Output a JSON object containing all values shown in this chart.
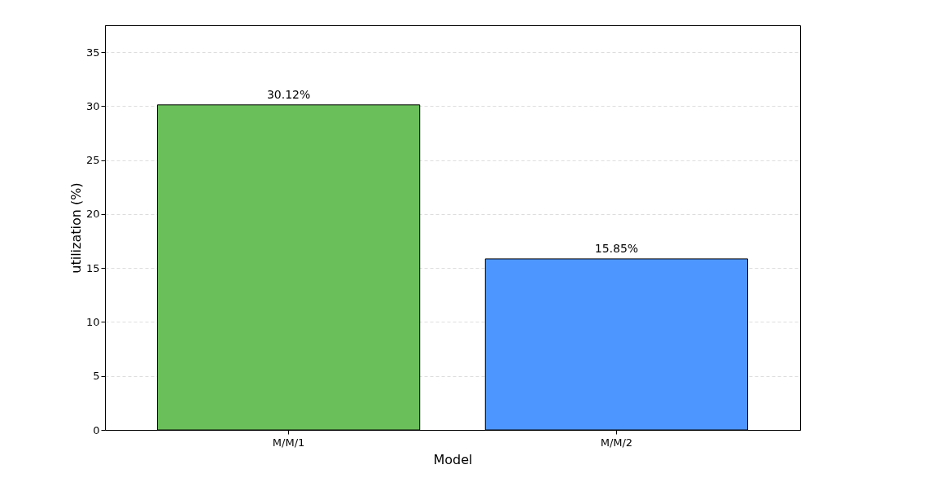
{
  "chart_data": {
    "type": "bar",
    "xlabel": "Model",
    "ylabel": "utilization (%)",
    "categories": [
      "M/M/1",
      "M/M/2"
    ],
    "values": [
      30.12,
      15.85
    ],
    "colors": [
      "#6abf5a",
      "#4d96ff"
    ],
    "value_labels": [
      "30.12%",
      "15.85%"
    ],
    "ylim": [
      0,
      37.5
    ],
    "yticks": [
      0,
      5,
      10,
      15,
      20,
      25,
      30,
      35
    ],
    "grid": "y"
  }
}
